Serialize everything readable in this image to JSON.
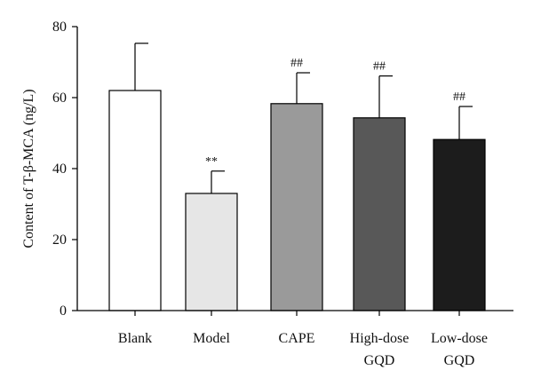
{
  "chart_data": {
    "type": "bar",
    "categories": [
      {
        "line1": "Blank",
        "line2": ""
      },
      {
        "line1": "Model",
        "line2": ""
      },
      {
        "line1": "CAPE",
        "line2": ""
      },
      {
        "line1": "High-dose",
        "line2": "GQD"
      },
      {
        "line1": "Low-dose",
        "line2": "GQD"
      }
    ],
    "values": [
      62,
      33,
      58.3,
      54.3,
      48.2
    ],
    "errors": [
      13.3,
      6.3,
      8.7,
      11.8,
      9.3
    ],
    "annotations": [
      "",
      "**",
      "##",
      "##",
      "##"
    ],
    "colors": [
      "#ffffff",
      "#e6e6e6",
      "#9a9a9a",
      "#585858",
      "#1c1c1c"
    ],
    "ylabel": "Content of T-β-MCA (ng/L)",
    "ylim": [
      0,
      80
    ],
    "yticks": [
      0,
      20,
      40,
      60,
      80
    ],
    "grid": false
  }
}
